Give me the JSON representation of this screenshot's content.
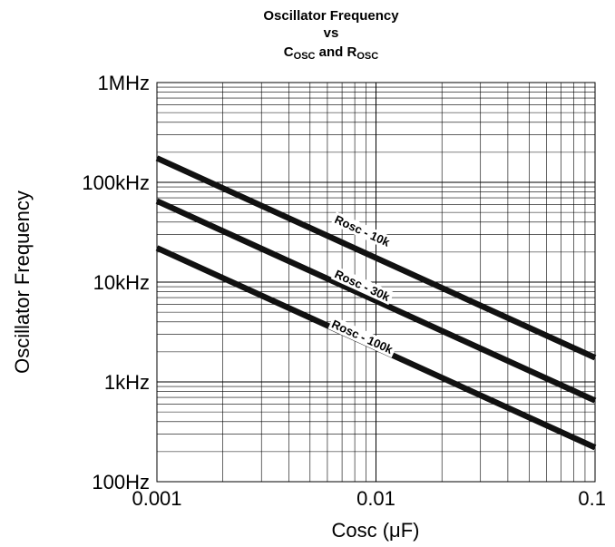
{
  "chart_data": {
    "type": "line",
    "title_lines": [
      "Oscillator Frequency",
      "vs"
    ],
    "title_line3": {
      "c": "C",
      "c_sub": "OSC",
      "and": "and",
      "r": "R",
      "r_sub": "OSC"
    },
    "xlabel": {
      "text": "Cosc (",
      "mu": "μ",
      "unit": "F)"
    },
    "ylabel": "Oscillator Frequency",
    "x_scale": "log",
    "y_scale": "log",
    "xlim": [
      0.001,
      0.1
    ],
    "ylim": [
      100,
      1000000
    ],
    "x_ticks": [
      {
        "value": 0.001,
        "label": "0.001"
      },
      {
        "value": 0.01,
        "label": "0.01"
      },
      {
        "value": 0.1,
        "label": "0.1"
      }
    ],
    "y_ticks": [
      {
        "value": 1000000,
        "label": "1MHz"
      },
      {
        "value": 100000,
        "label": "100kHz"
      },
      {
        "value": 10000,
        "label": "10kHz"
      },
      {
        "value": 1000,
        "label": "1kHz"
      },
      {
        "value": 100,
        "label": "100Hz"
      }
    ],
    "grid": true,
    "series": [
      {
        "name": "Rosc - 10k",
        "x": [
          0.001,
          0.1
        ],
        "y": [
          175000,
          1750
        ]
      },
      {
        "name": "Rosc - 30k",
        "x": [
          0.001,
          0.1
        ],
        "y": [
          65000,
          650
        ]
      },
      {
        "name": "Rosc - 100k",
        "x": [
          0.001,
          0.1
        ],
        "y": [
          22000,
          220
        ]
      }
    ],
    "annotations": [
      {
        "text": "Rosc - 10k",
        "x": 0.0085,
        "y": 30000
      },
      {
        "text": "Rosc - 30k",
        "x": 0.0085,
        "y": 8500
      },
      {
        "text": "Rosc - 100k",
        "x": 0.0085,
        "y": 2600
      }
    ]
  }
}
